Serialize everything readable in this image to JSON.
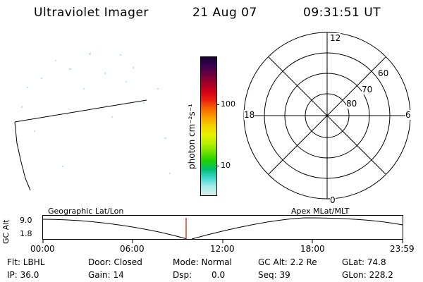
{
  "header": {
    "instrument": "Ultraviolet Imager",
    "date": "21 Aug 07",
    "time": "09:31:51 UT"
  },
  "colorbar": {
    "label": "photon cm⁻²s⁻¹",
    "ticks": [
      "100",
      "10"
    ],
    "colors": [
      "#1a0033",
      "#3a0050",
      "#6a0040",
      "#a0002a",
      "#d20018",
      "#ee2010",
      "#f66a00",
      "#fba000",
      "#f4d400",
      "#e8f000",
      "#b8f000",
      "#6ee000",
      "#20d000",
      "#00c070",
      "#40d8d0",
      "#a8ece8",
      "#dceceb"
    ]
  },
  "polar": {
    "mlt_labels": {
      "top": "12",
      "left": "18",
      "right": "6",
      "bottom": "0"
    },
    "lat_labels": [
      "60",
      "70",
      "80"
    ]
  },
  "altitude_plot": {
    "ylabel": "GC Alt",
    "y_ticks": [
      "9.0",
      "1.8"
    ],
    "left_caption": "Geographic Lat/Lon",
    "right_caption": "Apex MLat/MLT",
    "x_ticks": [
      "00:00",
      "06:00",
      "12:00",
      "18:00",
      "23:59"
    ]
  },
  "info": {
    "row1": {
      "filter": "Flt: LBHL",
      "door": "Door: Closed",
      "mode": "Mode: Normal",
      "gc_alt": "GC Alt: 2.2 Re",
      "glat": "GLat:  74.8"
    },
    "row2": {
      "ip": "IP: 36.0",
      "gain": "Gain: 14",
      "dsp_label": "Dsp:",
      "dsp_value": "0.0",
      "seq": "Seq: 39",
      "glon": "GLon: 228.2"
    }
  }
}
